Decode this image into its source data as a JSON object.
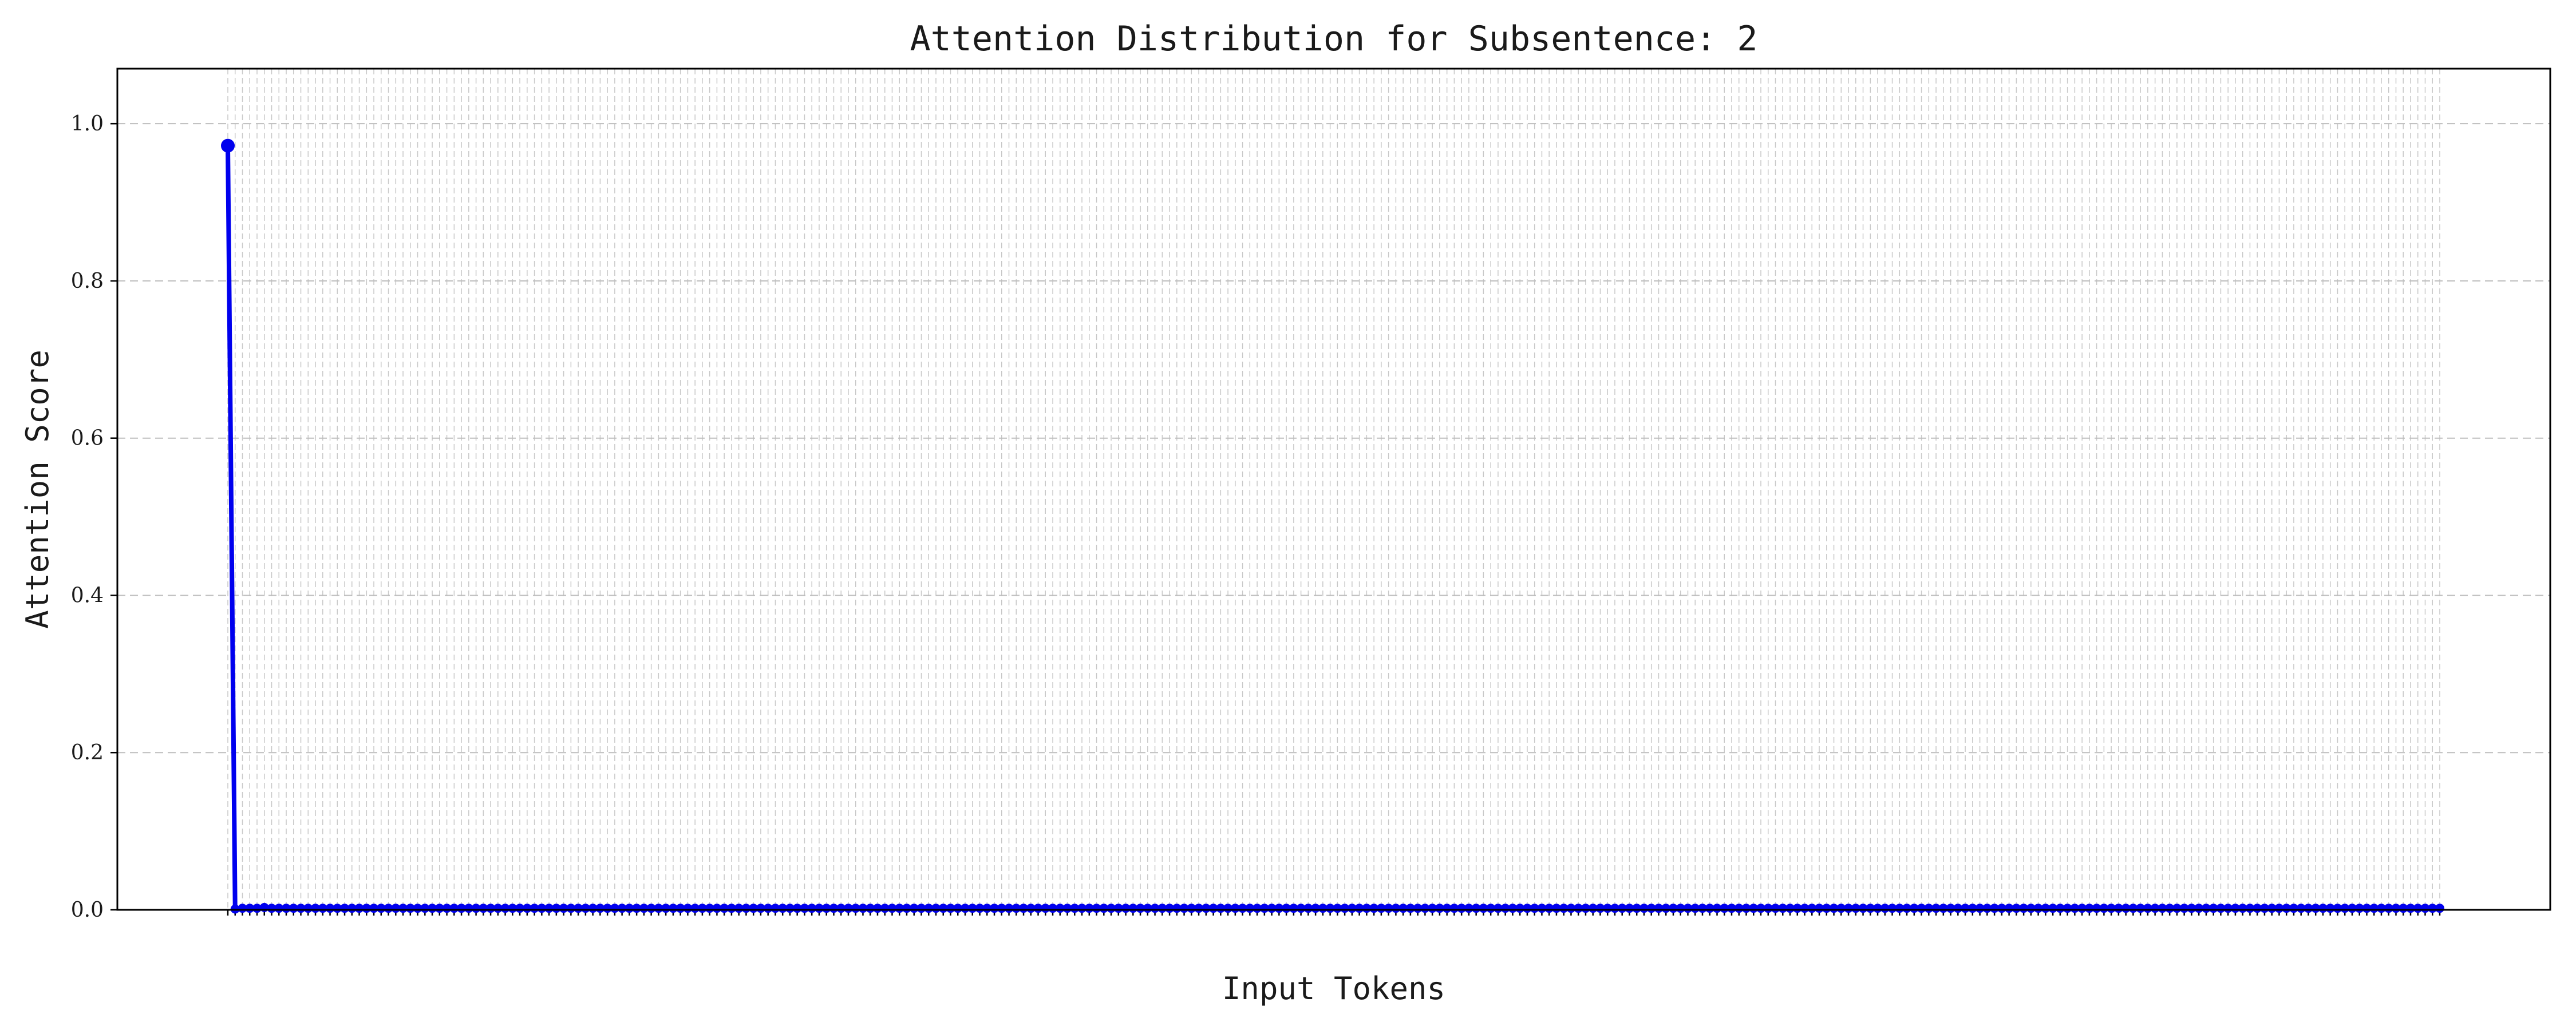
{
  "colors": {
    "line": "#0000ee",
    "grid": "#bdbdbd"
  },
  "chart_data": {
    "type": "line",
    "title": "Attention Distribution for Subsentence: 2",
    "xlabel": "Input Tokens",
    "ylabel": "Attention Score",
    "ylim": [
      0,
      1.07
    ],
    "yticks": [
      "0.0",
      "0.2",
      "0.4",
      "0.6",
      "0.8",
      "1.0"
    ],
    "grid": true,
    "series": [
      {
        "values": [
          0.972,
          0.001,
          0.002,
          0.002,
          0.002,
          0.003,
          0.002,
          0.002,
          0.002,
          0.002,
          0.002,
          0.002,
          0.002,
          0.002,
          0.002,
          0.002,
          0.002,
          0.002,
          0.002,
          0.002,
          0.002,
          0.002,
          0.002,
          0.002,
          0.002,
          0.002,
          0.002,
          0.002,
          0.002,
          0.002,
          0.002,
          0.002,
          0.002,
          0.002,
          0.002,
          0.002,
          0.002,
          0.002,
          0.002,
          0.002,
          0.002,
          0.002,
          0.002,
          0.002,
          0.002,
          0.002,
          0.002,
          0.002,
          0.002,
          0.002,
          0.002,
          0.002,
          0.002,
          0.002,
          0.002,
          0.002,
          0.002,
          0.002,
          0.002,
          0.002,
          0.002,
          0.002,
          0.002,
          0.002,
          0.002,
          0.002,
          0.002,
          0.002,
          0.002,
          0.002,
          0.002,
          0.002,
          0.002,
          0.002,
          0.002,
          0.002,
          0.002,
          0.002,
          0.002,
          0.002,
          0.002,
          0.002,
          0.002,
          0.002,
          0.002,
          0.002,
          0.002,
          0.002,
          0.002,
          0.002,
          0.002,
          0.002,
          0.002,
          0.002,
          0.002,
          0.002,
          0.002,
          0.002,
          0.002,
          0.002,
          0.002,
          0.002,
          0.002,
          0.002,
          0.002,
          0.002,
          0.002,
          0.002,
          0.002,
          0.002,
          0.002,
          0.002,
          0.002,
          0.002,
          0.002,
          0.002,
          0.002,
          0.002,
          0.002,
          0.002,
          0.002,
          0.002,
          0.002,
          0.002,
          0.002,
          0.002,
          0.002,
          0.002,
          0.002,
          0.002,
          0.002,
          0.002,
          0.002,
          0.002,
          0.002,
          0.002,
          0.002,
          0.002,
          0.002,
          0.002,
          0.002,
          0.002,
          0.002,
          0.002,
          0.002,
          0.002,
          0.002,
          0.002,
          0.002,
          0.002,
          0.002,
          0.002,
          0.002,
          0.002,
          0.002,
          0.002,
          0.002,
          0.002,
          0.002,
          0.002,
          0.002,
          0.002,
          0.002,
          0.002,
          0.002,
          0.002,
          0.002,
          0.002,
          0.002,
          0.002,
          0.002,
          0.002,
          0.002,
          0.002,
          0.002,
          0.002,
          0.002,
          0.002,
          0.002,
          0.002,
          0.002,
          0.002,
          0.002,
          0.002,
          0.002,
          0.002,
          0.002,
          0.002,
          0.002,
          0.002,
          0.002,
          0.002,
          0.002,
          0.002,
          0.002,
          0.002,
          0.002,
          0.002,
          0.002,
          0.002,
          0.002,
          0.002,
          0.002,
          0.002,
          0.002,
          0.002,
          0.002,
          0.002,
          0.002,
          0.002,
          0.002,
          0.002,
          0.002,
          0.002,
          0.002,
          0.002,
          0.002,
          0.002,
          0.002,
          0.002,
          0.002,
          0.002,
          0.002,
          0.002,
          0.002,
          0.002,
          0.002,
          0.002,
          0.002,
          0.002,
          0.002,
          0.002,
          0.002,
          0.002,
          0.002,
          0.002,
          0.002,
          0.002,
          0.002,
          0.002,
          0.002,
          0.002,
          0.002,
          0.002,
          0.002,
          0.002,
          0.002,
          0.002,
          0.002,
          0.002,
          0.002,
          0.002,
          0.002,
          0.002,
          0.002,
          0.002,
          0.002,
          0.002,
          0.002,
          0.002,
          0.002,
          0.002,
          0.002,
          0.002,
          0.002,
          0.002,
          0.002,
          0.002,
          0.002,
          0.002,
          0.002,
          0.002,
          0.002,
          0.002,
          0.002,
          0.002,
          0.002,
          0.002,
          0.002,
          0.002,
          0.002,
          0.002,
          0.002,
          0.002,
          0.002,
          0.002,
          0.002,
          0.002,
          0.002,
          0.002,
          0.002,
          0.002,
          0.002,
          0.002,
          0.002,
          0.002,
          0.002,
          0.002,
          0.002,
          0.002,
          0.002,
          0.002,
          0.002,
          0.002
        ]
      }
    ]
  }
}
